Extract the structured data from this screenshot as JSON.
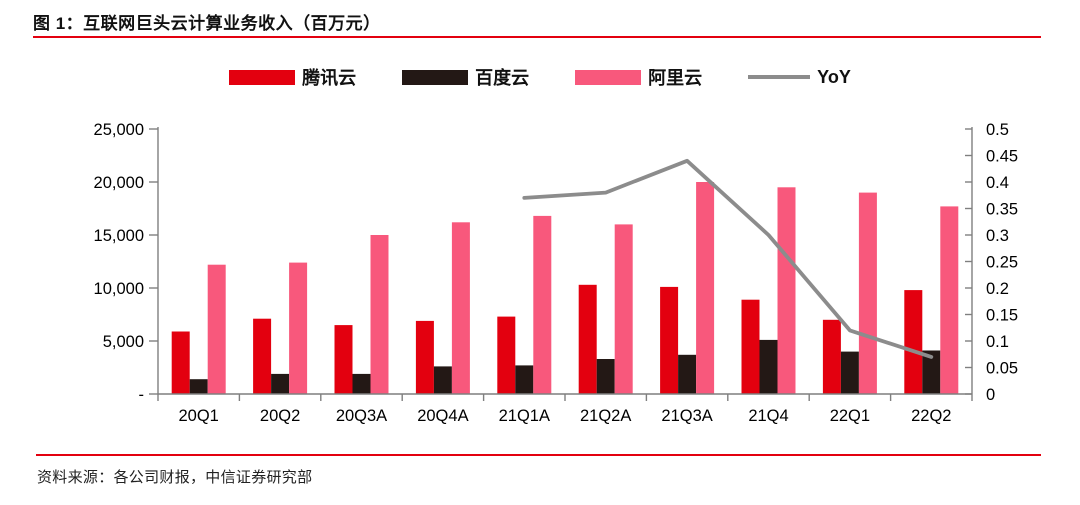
{
  "header": {
    "title": "图 1：互联网巨头云计算业务收入（百万元）"
  },
  "footer": {
    "source": "资料来源：各公司财报，中信证券研究部"
  },
  "colors": {
    "tencent_red": "#e3000f",
    "baidu_dark": "#231815",
    "ali_pink": "#f8587c",
    "yoy_gray": "#8c8c8c",
    "rule_red": "#e3000f",
    "axis_gray": "#7f7f7f",
    "text_black": "#000000"
  },
  "chart_data": {
    "type": "bar",
    "title": "互联网巨头云计算业务收入（百万元）",
    "categories": [
      "20Q1",
      "20Q2",
      "20Q3A",
      "20Q4A",
      "21Q1A",
      "21Q2A",
      "21Q3A",
      "21Q4",
      "22Q1",
      "22Q2"
    ],
    "series": [
      {
        "key": "tencent-cloud",
        "name": "腾讯云",
        "type": "bar",
        "axis": "left",
        "color": "#e3000f",
        "values": [
          5900,
          7100,
          6500,
          6900,
          7300,
          10300,
          10100,
          8900,
          7000,
          9800
        ]
      },
      {
        "key": "baidu-cloud",
        "name": "百度云",
        "type": "bar",
        "axis": "left",
        "color": "#231815",
        "values": [
          1400,
          1900,
          1900,
          2600,
          2700,
          3300,
          3700,
          5100,
          4000,
          4100
        ]
      },
      {
        "key": "ali-cloud",
        "name": "阿里云",
        "type": "bar",
        "axis": "left",
        "color": "#f8587c",
        "values": [
          12200,
          12400,
          15000,
          16200,
          16800,
          16000,
          20000,
          19500,
          19000,
          17700
        ]
      },
      {
        "key": "yoy",
        "name": "YoY",
        "type": "line",
        "axis": "right",
        "color": "#8c8c8c",
        "values": [
          null,
          null,
          null,
          null,
          0.37,
          0.38,
          0.44,
          0.3,
          0.12,
          0.07
        ]
      }
    ],
    "left_axis": {
      "min": 0,
      "max": 25000,
      "step": 5000,
      "tick_labels": [
        "-",
        "5,000",
        "10,000",
        "15,000",
        "20,000",
        "25,000"
      ]
    },
    "right_axis": {
      "min": 0,
      "max": 0.5,
      "step": 0.05,
      "tick_labels": [
        "0",
        "0.05",
        "0.1",
        "0.15",
        "0.2",
        "0.25",
        "0.3",
        "0.35",
        "0.4",
        "0.45",
        "0.5"
      ]
    },
    "grid": false,
    "legend_position": "top-center"
  }
}
